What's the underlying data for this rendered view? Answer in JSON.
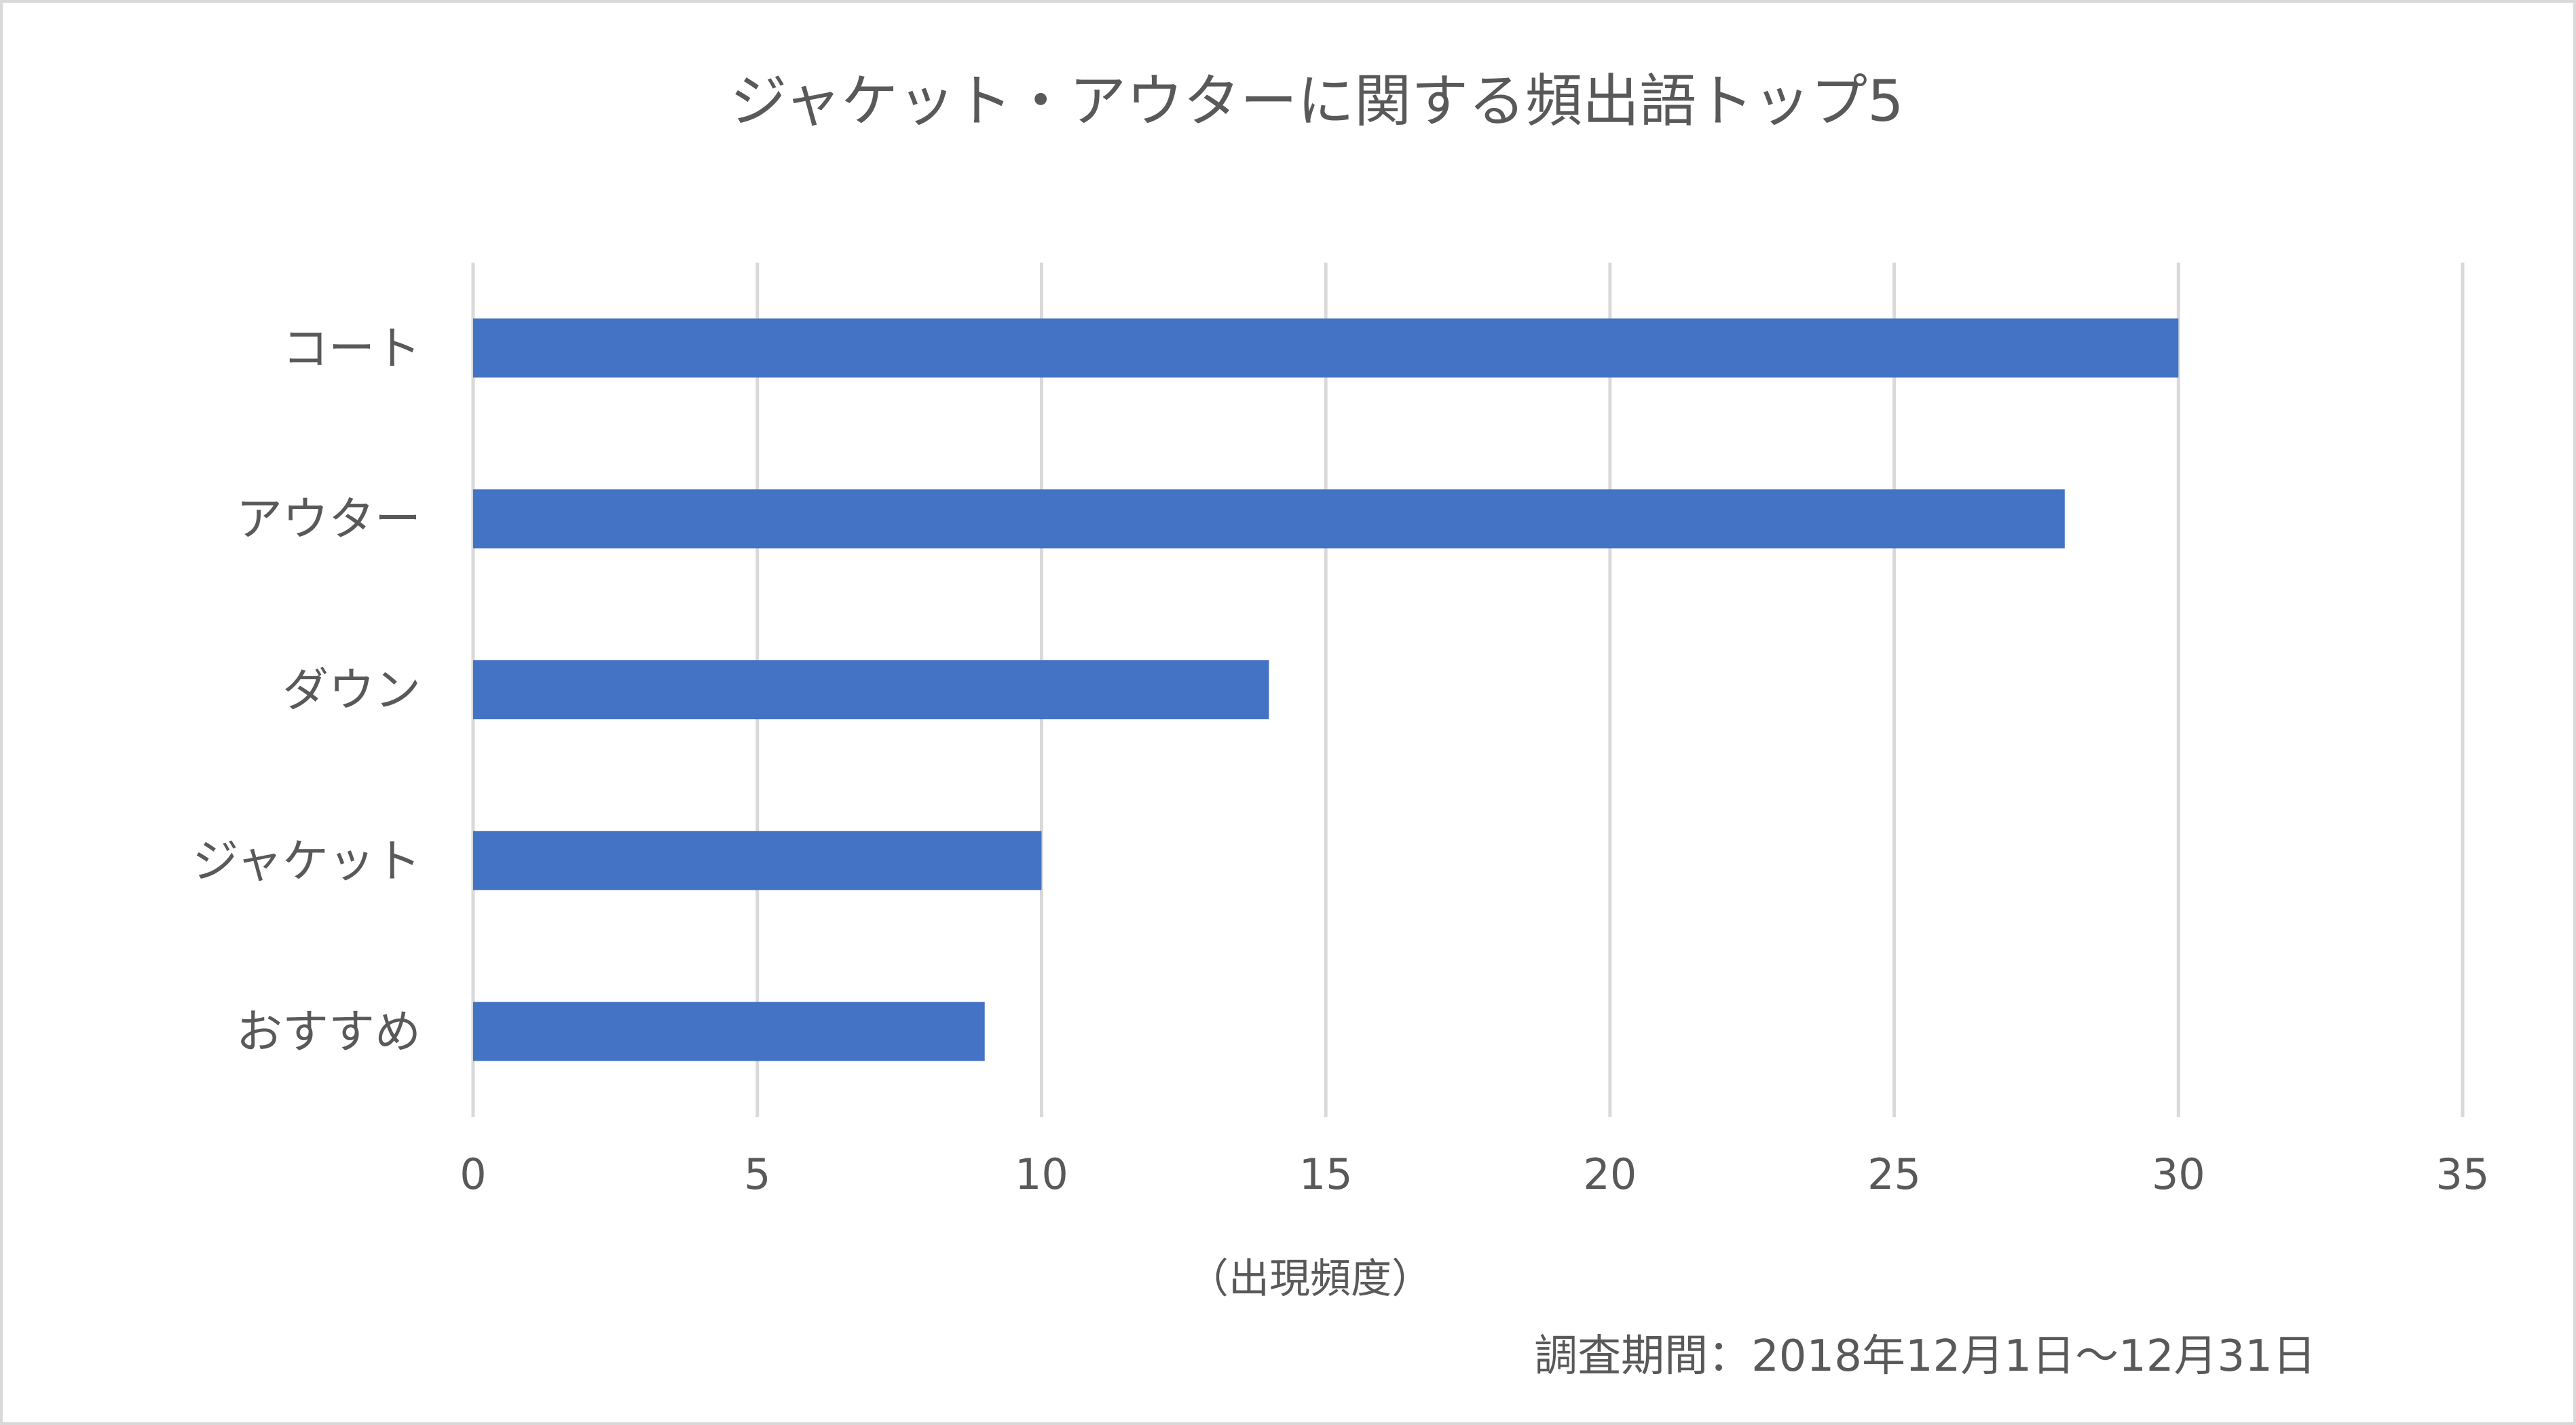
{
  "chart_data": {
    "type": "bar",
    "orientation": "horizontal",
    "title": "ジャケット・アウターに関する頻出語トップ5",
    "categories": [
      "コート",
      "アウター",
      "ダウン",
      "ジャケット",
      "おすすめ"
    ],
    "values": [
      30,
      28,
      14,
      10,
      9
    ],
    "xlabel": "（出現頻度）",
    "ylabel": "",
    "xlim": [
      0,
      35
    ],
    "xticks": [
      "0",
      "5",
      "10",
      "15",
      "20",
      "25",
      "30",
      "35"
    ],
    "grid": "vertical",
    "legend": "none",
    "bar_color": "#4472C4",
    "note": "調査期間：2018年12月1日～12月31日"
  }
}
